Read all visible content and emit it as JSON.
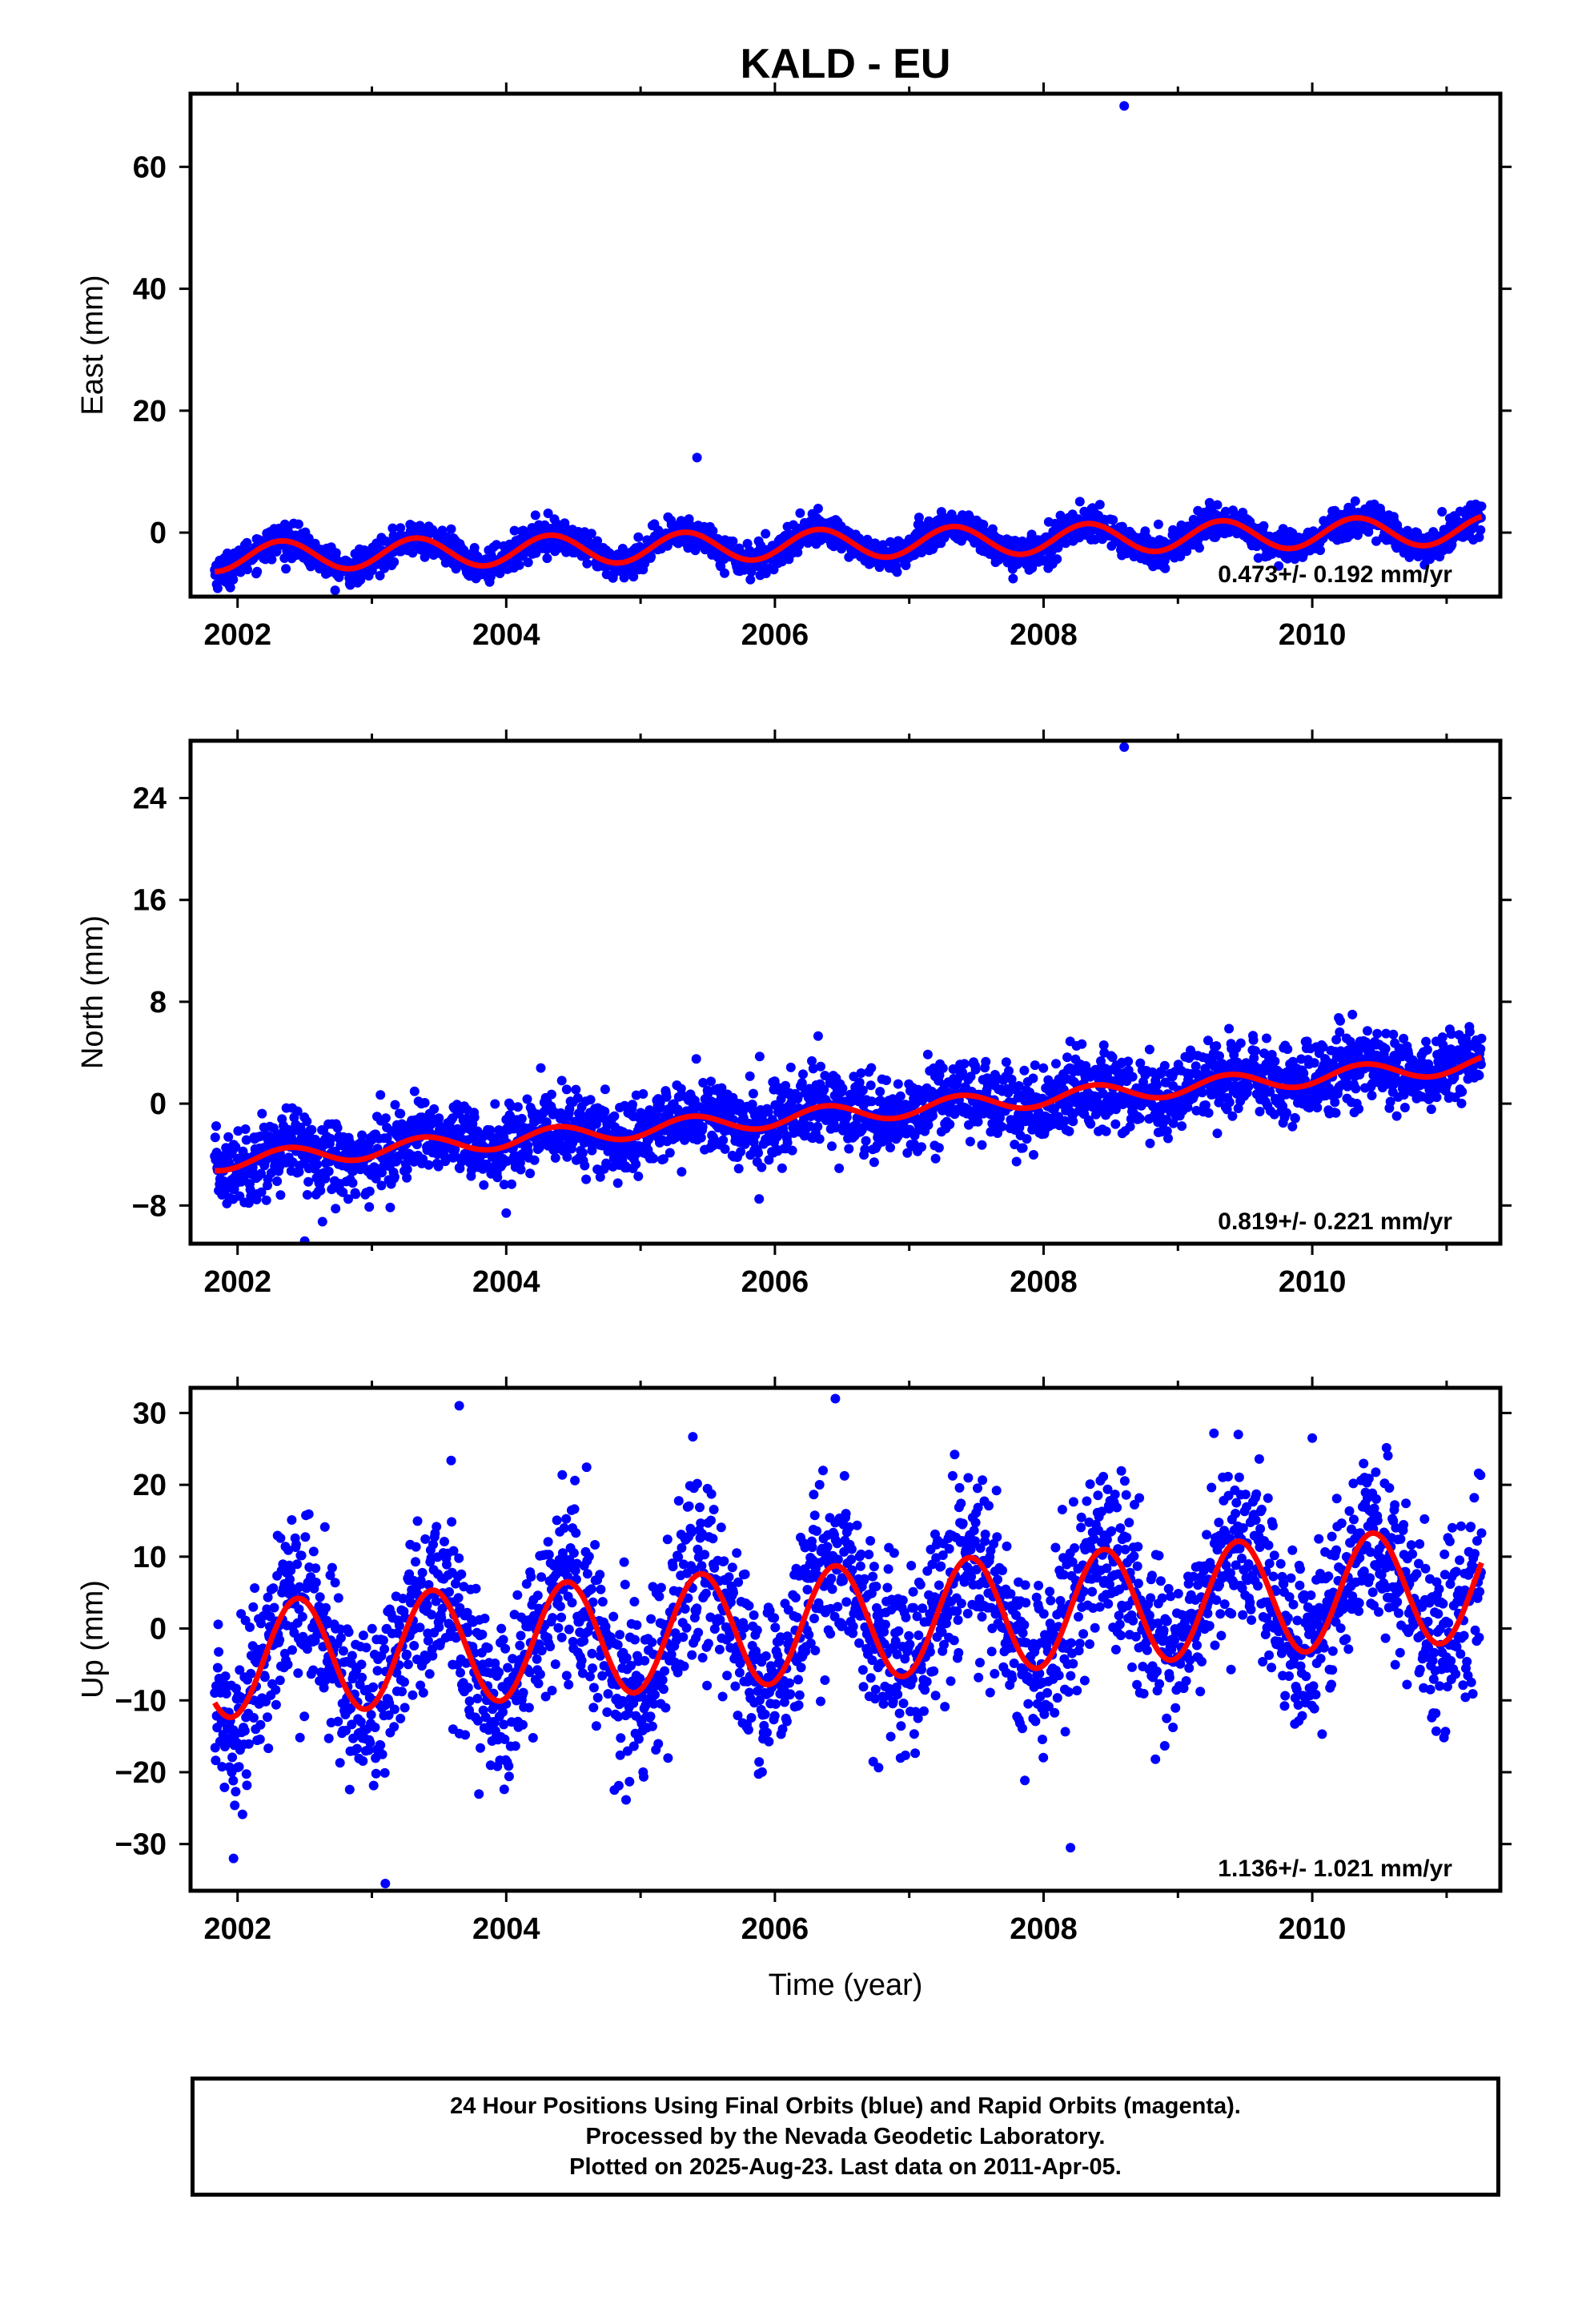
{
  "title": "KALD - EU",
  "chart_data": [
    {
      "type": "scatter",
      "ylabel": "East (mm)",
      "xlabel": "",
      "xlim": [
        2001.65,
        2011.4
      ],
      "ylim": [
        -10.5,
        72
      ],
      "x_ticks": [
        2002,
        2004,
        2006,
        2008,
        2010
      ],
      "y_ticks": [
        0,
        20,
        40,
        60
      ],
      "grid": false,
      "rate_label": "0.473+/- 0.192 mm/yr",
      "series": [
        {
          "kind": "points",
          "color": "#0000ff",
          "x_range": [
            2001.83,
            2011.26
          ],
          "trend": {
            "t0": 2001.83,
            "offset": -4.0,
            "rate": 0.473,
            "amplitude": 2.4,
            "phase": 0.25
          },
          "noise_sd": 1.3,
          "outliers": [
            {
              "x": 2008.6,
              "y": 70.0
            },
            {
              "x": 2005.42,
              "y": 12.3
            }
          ]
        },
        {
          "kind": "line",
          "color": "#ff0000",
          "x_range": [
            2001.83,
            2011.26
          ],
          "trend": {
            "t0": 2001.83,
            "offset": -4.0,
            "rate": 0.473,
            "amplitude": 2.4,
            "phase": 0.25
          }
        }
      ]
    },
    {
      "type": "scatter",
      "ylabel": "North (mm)",
      "xlabel": "",
      "xlim": [
        2001.65,
        2011.4
      ],
      "ylim": [
        -11,
        28.5
      ],
      "x_ticks": [
        2002,
        2004,
        2006,
        2008,
        2010
      ],
      "y_ticks": [
        -8,
        0,
        8,
        16,
        24
      ],
      "grid": false,
      "rate_label": "0.819+/- 0.221 mm/yr",
      "series": [
        {
          "kind": "points",
          "color": "#0000ff",
          "x_range": [
            2001.83,
            2011.26
          ],
          "trend": {
            "t0": 2001.83,
            "offset": -4.6,
            "rate": 0.819,
            "amplitude": 0.7,
            "phase": 0.3
          },
          "noise_sd": 1.5,
          "outliers": [
            {
              "x": 2008.6,
              "y": 28.0
            },
            {
              "x": 2004.0,
              "y": -8.6
            },
            {
              "x": 2002.5,
              "y": -10.8
            }
          ]
        },
        {
          "kind": "line",
          "color": "#ff0000",
          "x_range": [
            2001.83,
            2011.26
          ],
          "trend": {
            "t0": 2001.83,
            "offset": -4.6,
            "rate": 0.819,
            "amplitude": 0.7,
            "phase": 0.3
          }
        }
      ]
    },
    {
      "type": "scatter",
      "ylabel": "Up (mm)",
      "xlabel": "Time (year)",
      "xlim": [
        2001.65,
        2011.4
      ],
      "ylim": [
        -36.5,
        33.5
      ],
      "x_ticks": [
        2002,
        2004,
        2006,
        2008,
        2010
      ],
      "y_ticks": [
        -30,
        -20,
        -10,
        0,
        10,
        20,
        30
      ],
      "grid": false,
      "rate_label": "1.136+/- 1.021 mm/yr",
      "series": [
        {
          "kind": "points",
          "color": "#0000ff",
          "x_range": [
            2001.83,
            2011.26
          ],
          "trend": {
            "t0": 2001.83,
            "offset": -4.5,
            "rate": 1.136,
            "amplitude": 8.0,
            "phase": 0.37
          },
          "noise_sd": 6.0,
          "outliers": [
            {
              "x": 2006.45,
              "y": 32.0
            },
            {
              "x": 2003.65,
              "y": 31.0
            },
            {
              "x": 2008.2,
              "y": -30.5
            },
            {
              "x": 2003.1,
              "y": -35.5
            },
            {
              "x": 2001.97,
              "y": -32.0
            },
            {
              "x": 2010.0,
              "y": 26.5
            }
          ]
        },
        {
          "kind": "line",
          "color": "#ff0000",
          "x_range": [
            2001.83,
            2011.26
          ],
          "trend": {
            "t0": 2001.83,
            "offset": -4.5,
            "rate": 1.136,
            "amplitude": 8.0,
            "phase": 0.37
          }
        }
      ]
    }
  ],
  "caption": {
    "line1": "24 Hour Positions Using Final Orbits (blue) and Rapid Orbits (magenta).",
    "line2": "Processed by the Nevada Geodetic Laboratory.",
    "line3": "Plotted on 2025-Aug-23. Last data on 2011-Apr-05."
  }
}
